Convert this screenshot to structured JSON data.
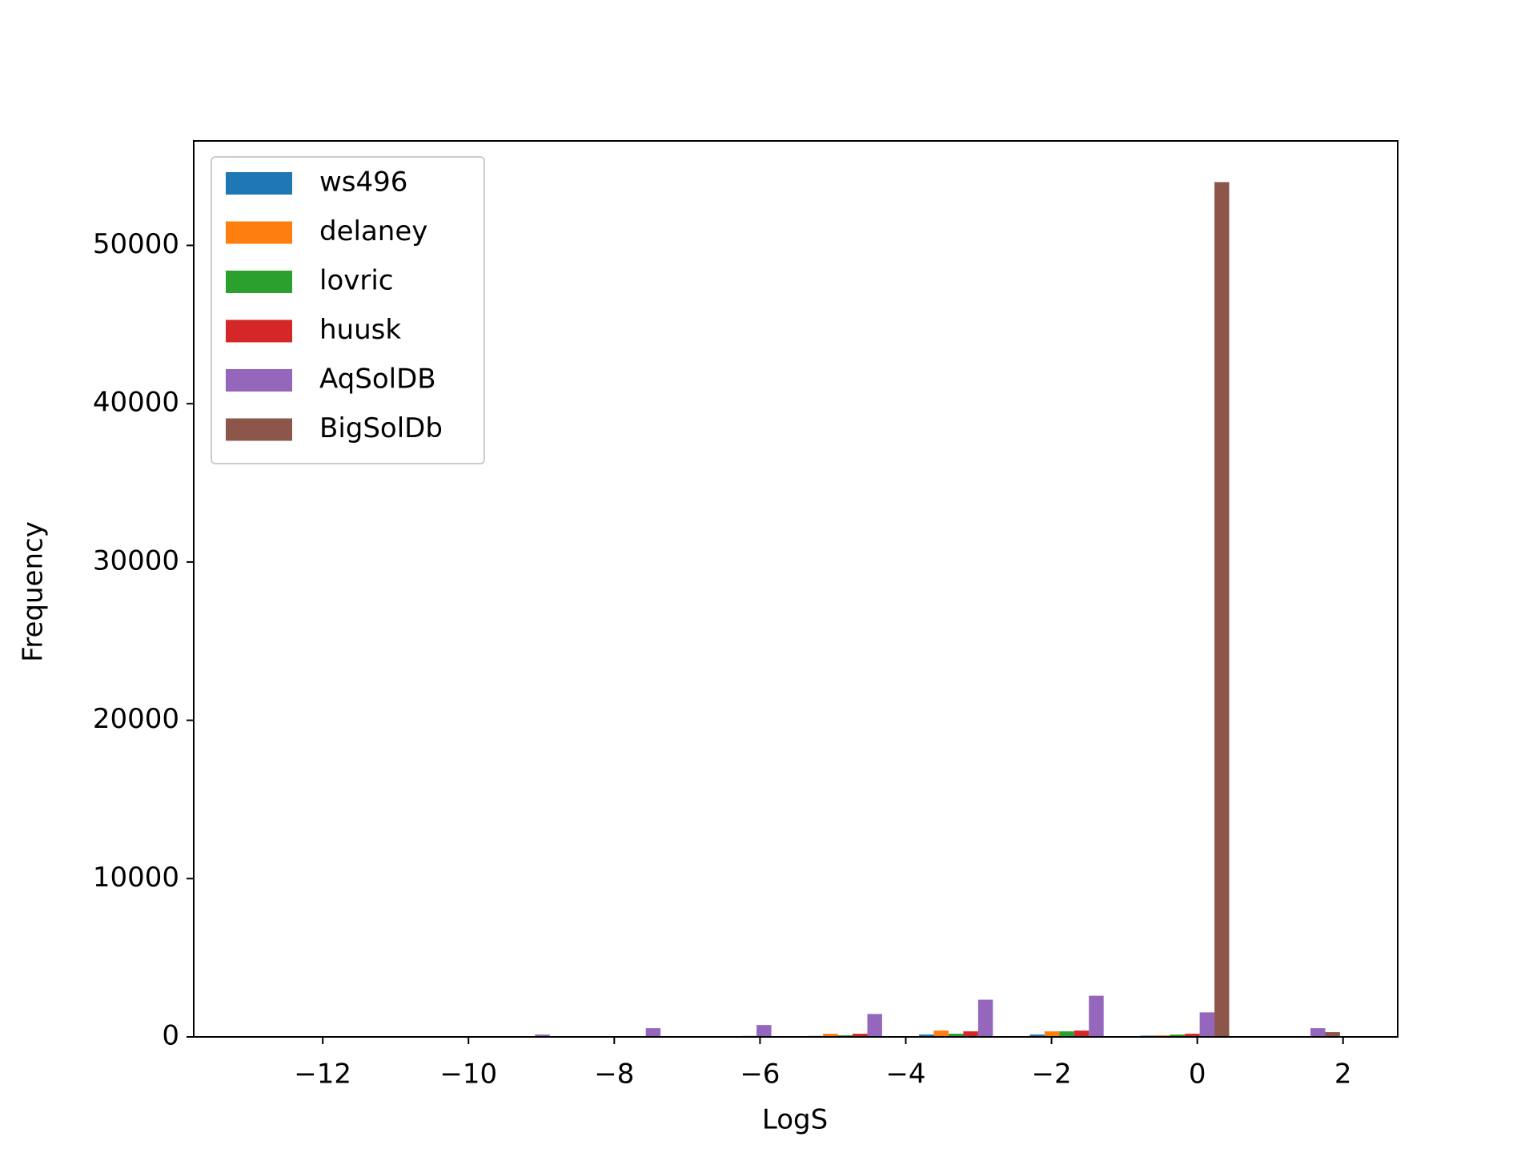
{
  "chart_data": {
    "type": "histogram",
    "x_label": "LogS",
    "y_label": "Frequency",
    "bins": [
      -13.09,
      -11.57,
      -10.05,
      -8.53,
      -7.01,
      -5.49,
      -3.97,
      -2.45,
      -0.93,
      0.59,
      2.11
    ],
    "series": [
      {
        "name": "ws496",
        "color": "#1f77b4",
        "values": [
          0,
          0,
          0,
          0,
          10,
          60,
          150,
          150,
          80,
          0
        ]
      },
      {
        "name": "delaney",
        "color": "#ff7f0e",
        "values": [
          0,
          0,
          0,
          10,
          50,
          200,
          400,
          350,
          100,
          0
        ]
      },
      {
        "name": "lovric",
        "color": "#2ca02c",
        "values": [
          0,
          0,
          0,
          0,
          20,
          100,
          200,
          350,
          150,
          0
        ]
      },
      {
        "name": "huusk",
        "color": "#d62728",
        "values": [
          0,
          0,
          0,
          10,
          60,
          200,
          350,
          400,
          200,
          0
        ]
      },
      {
        "name": "AqSolDB",
        "color": "#9467bd",
        "values": [
          0,
          10,
          150,
          550,
          750,
          1450,
          2350,
          2600,
          1550,
          550
        ]
      },
      {
        "name": "BigSolDb",
        "color": "#8c564b",
        "values": [
          0,
          0,
          0,
          0,
          0,
          0,
          0,
          0,
          54000,
          300
        ]
      }
    ],
    "xlim": [
      -13.77,
      2.75
    ],
    "ylim": [
      0,
      56600
    ],
    "xticks": [
      {
        "value": -12,
        "label": "−12"
      },
      {
        "value": -10,
        "label": "−10"
      },
      {
        "value": -8,
        "label": "−8"
      },
      {
        "value": -6,
        "label": "−6"
      },
      {
        "value": -4,
        "label": "−4"
      },
      {
        "value": -2,
        "label": "−2"
      },
      0,
      2
    ],
    "yticks": [
      0,
      10000,
      20000,
      30000,
      40000,
      50000
    ],
    "legend": "upper left",
    "grid": false
  }
}
